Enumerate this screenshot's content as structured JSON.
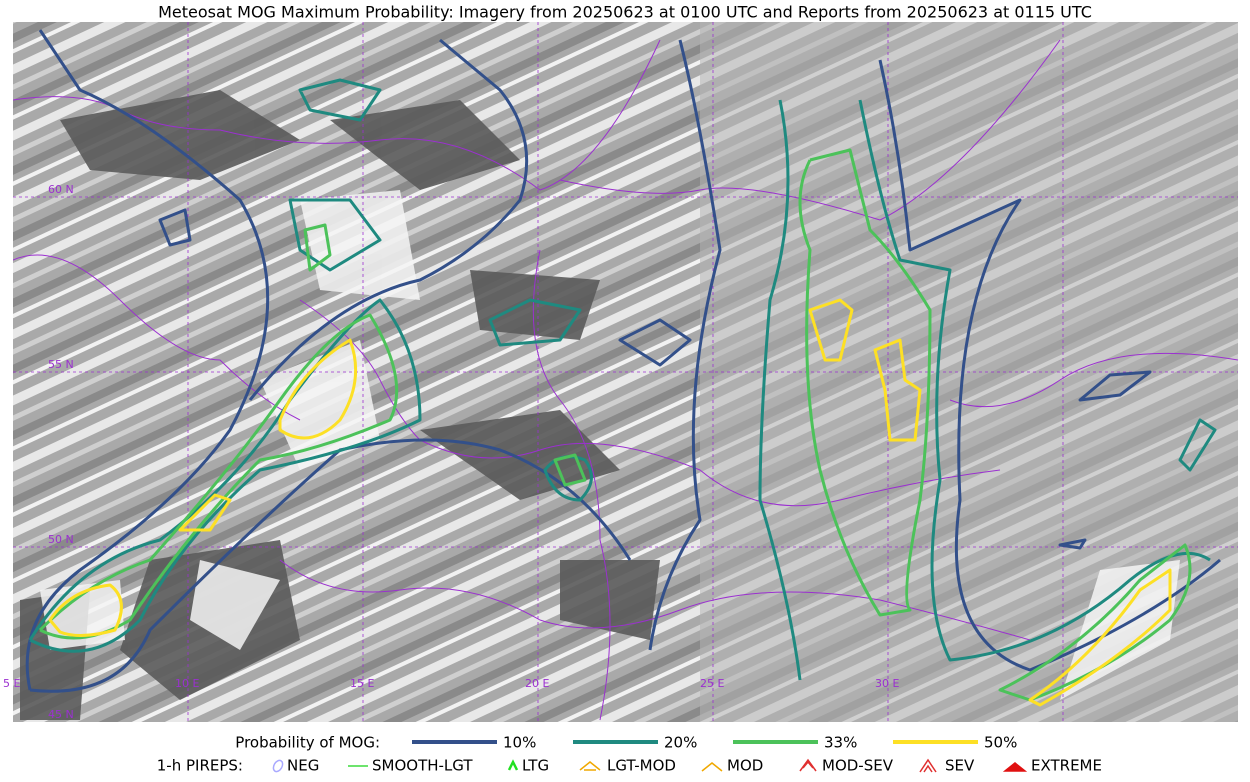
{
  "title": "Meteosat MOG Maximum Probability: Imagery from 20250623 at 0100 UTC and Reports from 20250623 at 0115 UTC",
  "map": {
    "lat_labels": [
      "60 N",
      "55 N",
      "50 N",
      "45 N"
    ],
    "lon_labels": [
      "5 E",
      "10 E",
      "15 E",
      "20 E",
      "25 E",
      "30 E"
    ]
  },
  "legend": {
    "probability": {
      "title": "Probability of MOG:",
      "items": [
        {
          "label": "10%",
          "color": "#33508a"
        },
        {
          "label": "20%",
          "color": "#1f8a80"
        },
        {
          "label": "33%",
          "color": "#4cc25a"
        },
        {
          "label": "50%",
          "color": "#fde025"
        }
      ]
    },
    "pireps": {
      "title": "1-h PIREPS:",
      "items": [
        "NEG",
        "SMOOTH-LGT",
        "LTG",
        "LGT-MOD",
        "MOD",
        "MOD-SEV",
        "SEV",
        "EXTREME"
      ]
    }
  }
}
